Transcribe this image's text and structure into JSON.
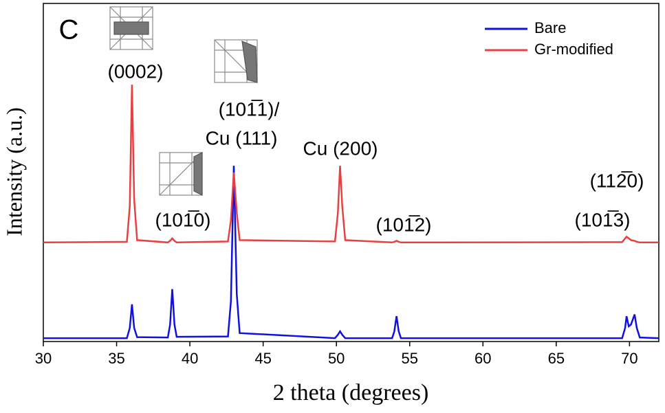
{
  "chart_data": {
    "type": "line",
    "x_label": "2 theta (degrees)",
    "y_label": "Intensity (a.u.)",
    "x": [
      30,
      35.7,
      35.9,
      36.05,
      36.2,
      36.4,
      38.5,
      38.65,
      38.8,
      38.95,
      39.1,
      42.6,
      42.8,
      43.0,
      43.2,
      43.4,
      49.9,
      50.1,
      50.25,
      50.4,
      50.6,
      53.8,
      53.95,
      54.1,
      54.25,
      54.4,
      69.5,
      69.7,
      69.8,
      69.95,
      70.1,
      70.35,
      70.5,
      70.7,
      72
    ],
    "series": [
      {
        "name": "Bare",
        "color": "#1010e0",
        "values": [
          1,
          1,
          4,
          11,
          4,
          1.3,
          1.2,
          5,
          15.5,
          5,
          1.4,
          1.5,
          12,
          52,
          14,
          2.5,
          1,
          2,
          3,
          2,
          1,
          1,
          3,
          7.5,
          3,
          1,
          1,
          4,
          7.5,
          4.5,
          5,
          8,
          4,
          1.2,
          1
        ]
      },
      {
        "name": "Gr-modified",
        "color": "#e84040",
        "values": [
          29.3,
          29.5,
          40,
          76,
          42,
          30,
          29.3,
          29.8,
          30.5,
          29.8,
          29.3,
          29.6,
          36,
          50,
          38,
          30,
          29.6,
          38,
          52,
          40,
          30,
          29.3,
          29.5,
          29.8,
          29.5,
          29.3,
          29.4,
          30.5,
          31,
          30.5,
          30,
          29.8,
          29.5,
          29.3,
          29.3
        ]
      }
    ],
    "xlim": [
      30,
      72
    ],
    "xticks": [
      30,
      35,
      40,
      45,
      50,
      55,
      60,
      65,
      70
    ],
    "ylim": [
      0,
      100
    ],
    "grid": false,
    "legend": "upper right",
    "annotations": [
      "C",
      "(0002)",
      "(101̅0)",
      "(101̅1)/",
      "Cu (111)",
      "Cu (200)",
      "(101̅2)",
      "(112̅0)",
      "(101̅3)"
    ]
  }
}
